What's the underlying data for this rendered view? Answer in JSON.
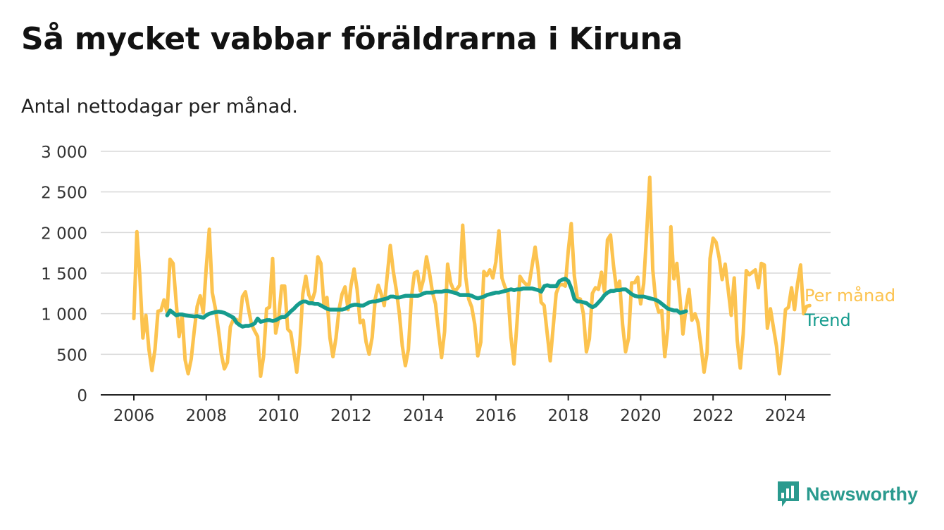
{
  "header": {
    "title": "Så mycket vabbar föräldrarna i Kiruna",
    "subtitle": "Antal nettodagar per månad."
  },
  "brand": {
    "name": "Newsworthy",
    "icon": "chart-bubble-icon",
    "color": "#2a9a8e"
  },
  "chart_data": {
    "type": "line",
    "title": "",
    "xlabel": "",
    "ylabel": "",
    "ylim": [
      0,
      3000
    ],
    "xlim": [
      2005.5,
      2025.1
    ],
    "y_ticks": [
      0,
      500,
      1000,
      1500,
      2000,
      2500,
      3000
    ],
    "y_tick_labels": [
      "0",
      "500",
      "1 000",
      "1 500",
      "2 000",
      "2 500",
      "3 000"
    ],
    "x_ticks": [
      2006,
      2008,
      2010,
      2012,
      2014,
      2016,
      2018,
      2020,
      2022,
      2024
    ],
    "x_tick_labels": [
      "2006",
      "2008",
      "2010",
      "2012",
      "2014",
      "2016",
      "2018",
      "2020",
      "2022",
      "2024"
    ],
    "grid": true,
    "legend": "right-end labels",
    "series": [
      {
        "name": "Per månad",
        "color": "#fcc34f",
        "x_start": 2006.0,
        "step": 0.0833333,
        "values": [
          940,
          2010,
          1450,
          700,
          980,
          560,
          300,
          560,
          1030,
          1040,
          1170,
          1020,
          1670,
          1620,
          1150,
          720,
          980,
          430,
          260,
          440,
          780,
          1090,
          1220,
          1010,
          1570,
          2040,
          1260,
          1070,
          810,
          500,
          320,
          400,
          840,
          930,
          930,
          860,
          1210,
          1270,
          1060,
          870,
          790,
          720,
          230,
          470,
          1060,
          1080,
          1680,
          760,
          950,
          1340,
          1340,
          810,
          770,
          530,
          280,
          620,
          1240,
          1460,
          1230,
          1150,
          1270,
          1700,
          1620,
          1110,
          1200,
          700,
          470,
          700,
          1050,
          1240,
          1330,
          1050,
          1350,
          1550,
          1300,
          890,
          920,
          650,
          500,
          710,
          1180,
          1350,
          1240,
          1100,
          1470,
          1840,
          1520,
          1290,
          1000,
          600,
          360,
          560,
          1200,
          1500,
          1520,
          1280,
          1420,
          1700,
          1500,
          1260,
          1120,
          780,
          460,
          780,
          1610,
          1380,
          1290,
          1300,
          1350,
          2090,
          1450,
          1180,
          1080,
          870,
          480,
          650,
          1520,
          1470,
          1540,
          1440,
          1640,
          2020,
          1440,
          1330,
          1260,
          710,
          380,
          890,
          1460,
          1400,
          1360,
          1360,
          1590,
          1820,
          1550,
          1140,
          1100,
          760,
          420,
          840,
          1250,
          1350,
          1360,
          1340,
          1780,
          2110,
          1470,
          1190,
          1180,
          1000,
          530,
          690,
          1250,
          1320,
          1300,
          1510,
          1270,
          1910,
          1970,
          1590,
          1300,
          1400,
          870,
          530,
          700,
          1380,
          1380,
          1450,
          1120,
          1370,
          2000,
          2680,
          1540,
          1150,
          1020,
          1040,
          470,
          820,
          2070,
          1430,
          1620,
          1200,
          750,
          1070,
          1300,
          920,
          1000,
          890,
          600,
          280,
          520,
          1680,
          1930,
          1880,
          1690,
          1420,
          1610,
          1300,
          980,
          1440,
          670,
          330,
          750,
          1530,
          1480,
          1510,
          1540,
          1320,
          1620,
          1600,
          820,
          1060,
          830,
          600,
          260,
          600,
          1050,
          1080,
          1320,
          1050,
          1370,
          1600,
          1000,
          1090,
          1100
        ]
      },
      {
        "name": "Trend",
        "color": "#169c8e",
        "x_start": 2006.92,
        "step": 0.0833333,
        "values": [
          980,
          1040,
          1010,
          980,
          990,
          990,
          980,
          975,
          970,
          965,
          970,
          960,
          950,
          980,
          1000,
          1010,
          1020,
          1025,
          1020,
          1010,
          990,
          970,
          950,
          890,
          860,
          840,
          850,
          850,
          860,
          880,
          940,
          900,
          910,
          920,
          920,
          910,
          920,
          940,
          960,
          960,
          990,
          1030,
          1060,
          1100,
          1130,
          1150,
          1150,
          1130,
          1130,
          1120,
          1120,
          1100,
          1080,
          1060,
          1050,
          1050,
          1050,
          1050,
          1050,
          1060,
          1080,
          1100,
          1110,
          1110,
          1100,
          1100,
          1120,
          1140,
          1150,
          1150,
          1160,
          1170,
          1180,
          1190,
          1210,
          1210,
          1200,
          1200,
          1210,
          1220,
          1220,
          1220,
          1220,
          1220,
          1230,
          1250,
          1260,
          1260,
          1260,
          1270,
          1270,
          1270,
          1280,
          1280,
          1270,
          1260,
          1250,
          1230,
          1230,
          1230,
          1230,
          1220,
          1200,
          1190,
          1200,
          1210,
          1230,
          1240,
          1250,
          1260,
          1260,
          1270,
          1280,
          1290,
          1300,
          1290,
          1300,
          1300,
          1310,
          1310,
          1310,
          1310,
          1300,
          1290,
          1270,
          1340,
          1350,
          1340,
          1340,
          1340,
          1400,
          1420,
          1430,
          1400,
          1310,
          1180,
          1150,
          1150,
          1140,
          1130,
          1100,
          1080,
          1100,
          1140,
          1180,
          1230,
          1260,
          1280,
          1280,
          1290,
          1290,
          1300,
          1300,
          1270,
          1240,
          1220,
          1210,
          1210,
          1210,
          1200,
          1190,
          1180,
          1170,
          1150,
          1120,
          1090,
          1060,
          1050,
          1040,
          1040,
          1010,
          1020,
          1030
        ]
      }
    ]
  }
}
